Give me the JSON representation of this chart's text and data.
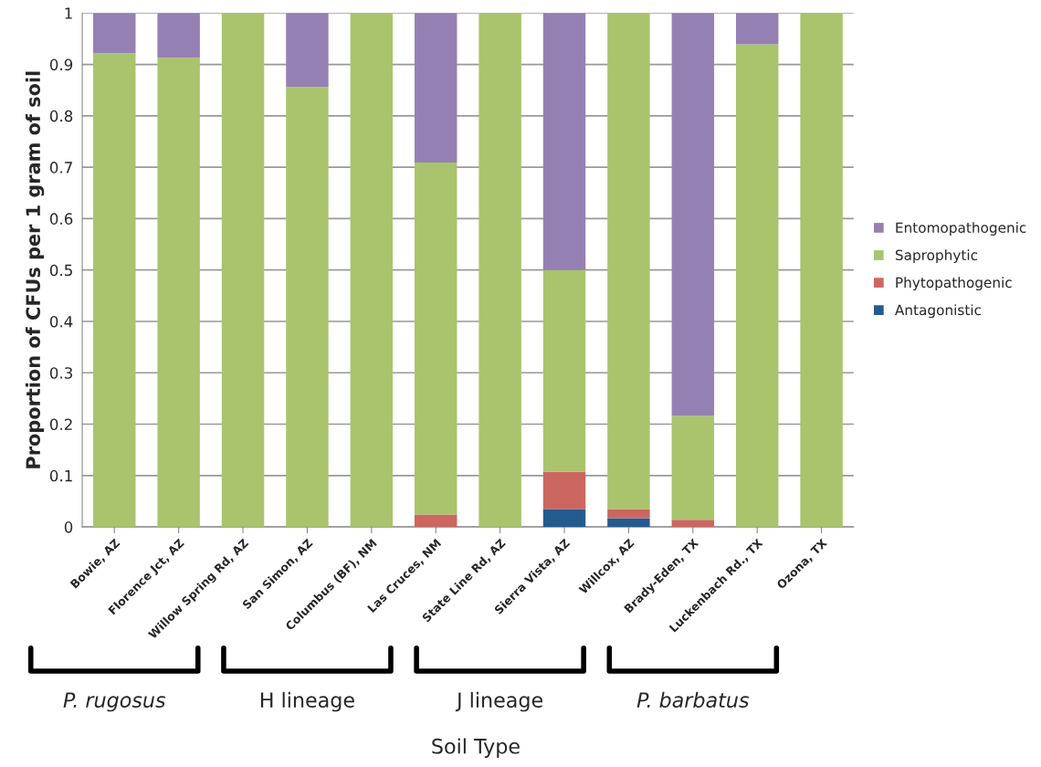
{
  "chart_data": {
    "type": "bar",
    "stacked": true,
    "categories": [
      "Bowie, AZ",
      "Florence Jct, AZ",
      "Willow Spring Rd, AZ",
      "San Simon, AZ",
      "Columbus (BF), NM",
      "Las Cruces, NM",
      "State Line Rd, AZ",
      "Sierra Vista, AZ",
      "Willcox, AZ",
      "Brady-Eden, TX",
      "Luckenbach Rd., TX",
      "Ozona, TX"
    ],
    "series": [
      {
        "name": "Antagonistic",
        "color": "#245b8f",
        "values": [
          null,
          null,
          null,
          null,
          null,
          null,
          null,
          0.035,
          0.017,
          null,
          null,
          null
        ]
      },
      {
        "name": "Phytopathogenic",
        "color": "#cc6660",
        "values": [
          null,
          null,
          null,
          null,
          null,
          0.024,
          null,
          0.072,
          0.018,
          0.014,
          null,
          null
        ]
      },
      {
        "name": "Saprophytic",
        "color": "#a9c46c",
        "values": [
          0.922,
          0.913,
          1,
          0.856,
          1,
          0.685,
          1,
          0.393,
          0.965,
          0.202,
          0.939,
          1
        ]
      },
      {
        "name": "Entomopathogenic",
        "color": "#9580b4",
        "values": [
          0.078,
          0.087,
          null,
          0.144,
          null,
          0.291,
          null,
          0.5,
          null,
          0.784,
          0.061,
          null
        ]
      }
    ],
    "xlabel": "Soil Type",
    "ylabel": "Proportion of CFUs per 1 gram of soil",
    "ylim": [
      0,
      1
    ],
    "yticks": [
      0,
      0.1,
      0.2,
      0.3,
      0.4,
      0.5,
      0.6,
      0.7,
      0.8,
      0.9,
      1
    ],
    "grid": "y",
    "legend": "right",
    "annotations": [
      "P. rugosus",
      "H lineage",
      "J lineage",
      "P. barbatus"
    ]
  }
}
